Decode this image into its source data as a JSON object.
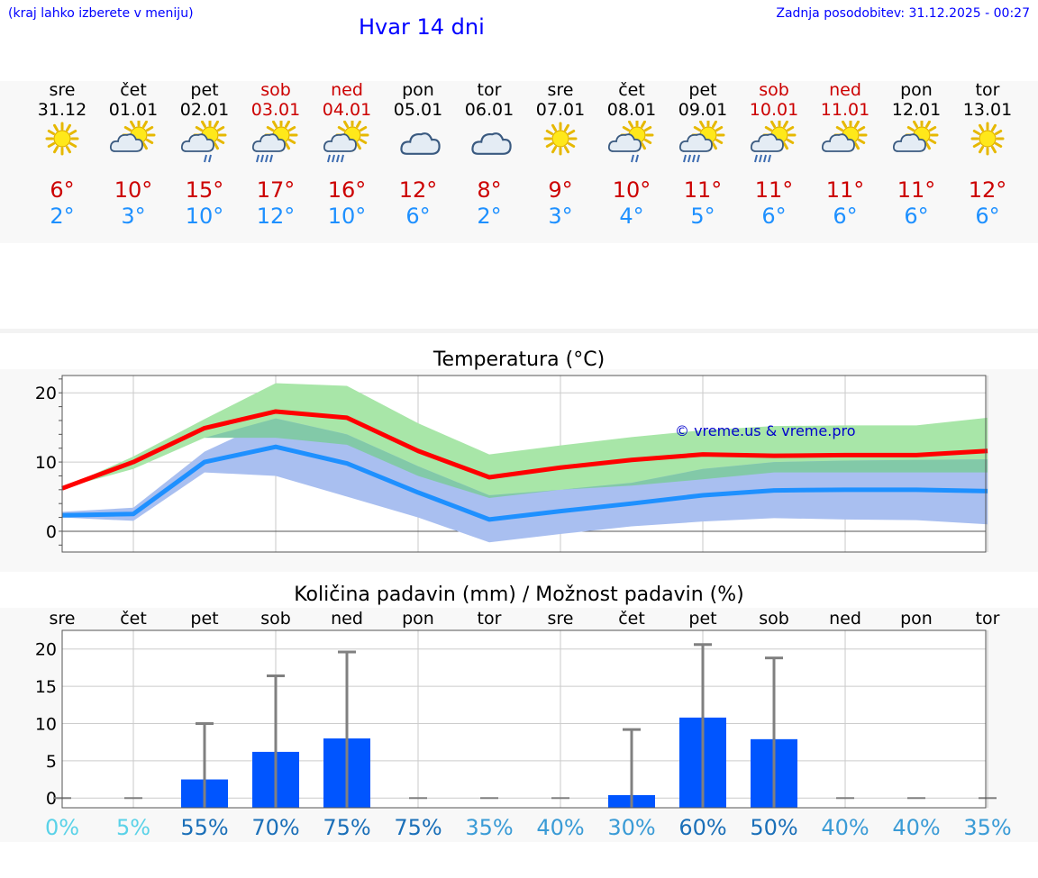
{
  "header": {
    "hint": "(kraj lahko izberete v meniju)",
    "title": "Hvar 14 dni",
    "updated": "Zadnja posodobitev: 31.12.2025 - 00:27"
  },
  "days": [
    {
      "name": "sre",
      "date": "31.12",
      "icon": "sun",
      "weekend": false,
      "tmax": "6°",
      "tmin": "2°"
    },
    {
      "name": "čet",
      "date": "01.01",
      "icon": "sun-cloud",
      "weekend": false,
      "tmax": "10°",
      "tmin": "3°"
    },
    {
      "name": "pet",
      "date": "02.01",
      "icon": "sun-cloud-light-rain",
      "weekend": false,
      "tmax": "15°",
      "tmin": "10°"
    },
    {
      "name": "sob",
      "date": "03.01",
      "icon": "sun-cloud-rain",
      "weekend": true,
      "tmax": "17°",
      "tmin": "12°"
    },
    {
      "name": "ned",
      "date": "04.01",
      "icon": "sun-cloud-rain",
      "weekend": true,
      "tmax": "16°",
      "tmin": "10°"
    },
    {
      "name": "pon",
      "date": "05.01",
      "icon": "cloud",
      "weekend": false,
      "tmax": "12°",
      "tmin": "6°"
    },
    {
      "name": "tor",
      "date": "06.01",
      "icon": "cloud",
      "weekend": false,
      "tmax": "8°",
      "tmin": "2°"
    },
    {
      "name": "sre",
      "date": "07.01",
      "icon": "sun",
      "weekend": false,
      "tmax": "9°",
      "tmin": "3°"
    },
    {
      "name": "čet",
      "date": "08.01",
      "icon": "sun-cloud-light-rain",
      "weekend": false,
      "tmax": "10°",
      "tmin": "4°"
    },
    {
      "name": "pet",
      "date": "09.01",
      "icon": "sun-cloud-rain",
      "weekend": false,
      "tmax": "11°",
      "tmin": "5°"
    },
    {
      "name": "sob",
      "date": "10.01",
      "icon": "sun-cloud-rain",
      "weekend": true,
      "tmax": "11°",
      "tmin": "6°"
    },
    {
      "name": "ned",
      "date": "11.01",
      "icon": "sun-cloud",
      "weekend": true,
      "tmax": "11°",
      "tmin": "6°"
    },
    {
      "name": "pon",
      "date": "12.01",
      "icon": "sun-cloud",
      "weekend": false,
      "tmax": "11°",
      "tmin": "6°"
    },
    {
      "name": "tor",
      "date": "13.01",
      "icon": "sun",
      "weekend": false,
      "tmax": "12°",
      "tmin": "6°"
    }
  ],
  "colors": {
    "max_line": "#ff0000",
    "min_line": "#1e90ff",
    "max_band": "#a8e6a8",
    "min_band": "#a9bff0",
    "overlap_band": "#82c9a8",
    "bar": "#0055ff",
    "whisker": "#808080",
    "weekend_text": "#cc0000",
    "link": "#0000ff"
  },
  "chart_data": [
    {
      "type": "line",
      "title": "Temperatura (°C)",
      "x": [
        "31.12",
        "01.01",
        "02.01",
        "03.01",
        "04.01",
        "05.01",
        "06.01",
        "07.01",
        "08.01",
        "09.01",
        "10.01",
        "11.01",
        "12.01",
        "13.01"
      ],
      "ylim": [
        -3,
        22.5
      ],
      "yticks": [
        0,
        10,
        20
      ],
      "watermark": "© vreme.us & vreme.pro",
      "series": [
        {
          "name": "max",
          "values": [
            6.2,
            10.0,
            14.9,
            17.3,
            16.4,
            11.6,
            7.8,
            9.2,
            10.3,
            11.1,
            10.9,
            11.0,
            11.0,
            11.6
          ]
        },
        {
          "name": "min",
          "values": [
            2.3,
            2.5,
            10.0,
            12.2,
            9.8,
            5.6,
            1.7,
            2.9,
            4.0,
            5.2,
            5.9,
            6.0,
            6.0,
            5.8
          ]
        },
        {
          "name": "max_band_low",
          "values": [
            6.2,
            9.0,
            13.5,
            13.5,
            12.5,
            8.0,
            4.8,
            6.0,
            6.6,
            7.5,
            8.5,
            8.5,
            8.5,
            8.5
          ]
        },
        {
          "name": "max_band_high",
          "values": [
            6.2,
            10.8,
            16.2,
            21.4,
            21.0,
            15.6,
            11.1,
            12.4,
            13.6,
            14.6,
            15.2,
            15.3,
            15.3,
            16.4
          ]
        },
        {
          "name": "min_band_low",
          "values": [
            2.0,
            1.5,
            8.5,
            8.0,
            5.0,
            2.0,
            -1.6,
            -0.4,
            0.7,
            1.4,
            1.9,
            1.7,
            1.6,
            1.0
          ]
        },
        {
          "name": "min_band_high",
          "values": [
            2.8,
            3.4,
            11.5,
            16.3,
            14.0,
            9.4,
            5.2,
            6.0,
            7.0,
            9.0,
            10.0,
            10.2,
            10.3,
            10.4
          ]
        }
      ]
    },
    {
      "type": "bar",
      "title": "Količina padavin (mm) / Možnost padavin (%)",
      "categories": [
        "sre",
        "čet",
        "pet",
        "sob",
        "ned",
        "pon",
        "tor",
        "sre",
        "čet",
        "pet",
        "sob",
        "ned",
        "pon",
        "tor"
      ],
      "values": [
        0,
        0,
        2.5,
        6.2,
        8.0,
        0,
        0,
        0,
        0.4,
        10.8,
        7.9,
        0,
        0,
        0
      ],
      "whisker_max": [
        0,
        0,
        10.0,
        16.4,
        19.6,
        0,
        0,
        0,
        9.2,
        20.6,
        18.8,
        0,
        0,
        0
      ],
      "ylim": [
        -1.3,
        22.5
      ],
      "yticks": [
        0,
        5,
        10,
        15,
        20
      ],
      "probabilities": [
        "0%",
        "5%",
        "55%",
        "70%",
        "75%",
        "75%",
        "35%",
        "40%",
        "30%",
        "60%",
        "50%",
        "40%",
        "40%",
        "35%"
      ],
      "probability_colors": [
        "#5ad2e8",
        "#5ad2e8",
        "#1a6fb8",
        "#1a6fb8",
        "#1a6fb8",
        "#1a6fb8",
        "#3a9bd6",
        "#3a9bd6",
        "#3a9bd6",
        "#1a6fb8",
        "#1a6fb8",
        "#3a9bd6",
        "#3a9bd6",
        "#3a9bd6"
      ]
    }
  ]
}
